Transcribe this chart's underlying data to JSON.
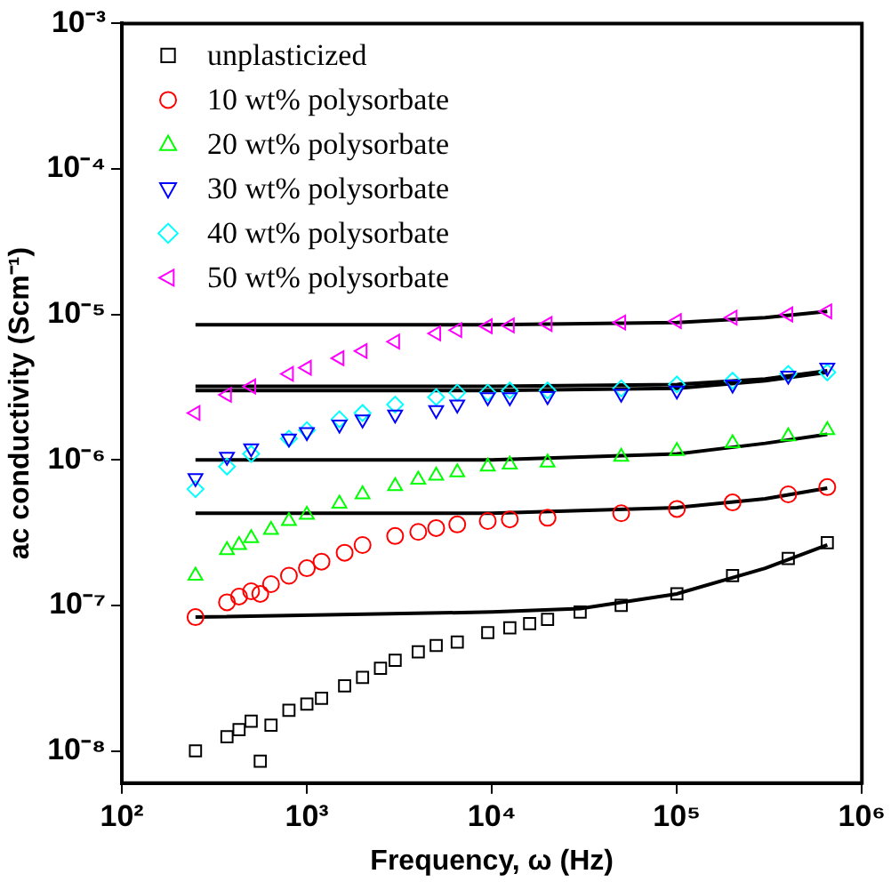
{
  "chart_data": {
    "type": "scatter",
    "xlabel": "Frequency, ω (Hz)",
    "ylabel": "ac conductivity (Scm⁻¹)",
    "log": "xy",
    "xlim": [
      100,
      1000000
    ],
    "xticks": [
      {
        "value": 100,
        "label": "10²"
      },
      {
        "value": 1000,
        "label": "10³"
      },
      {
        "value": 10000,
        "label": "10⁴"
      },
      {
        "value": 100000,
        "label": "10⁵"
      },
      {
        "value": 1000000,
        "label": "10⁶"
      }
    ],
    "ylim": [
      6e-09,
      0.001
    ],
    "yticks": [
      {
        "value": 1e-08,
        "label": "10⁻⁸"
      },
      {
        "value": 1e-07,
        "label": "10⁻⁷"
      },
      {
        "value": 1e-06,
        "label": "10⁻⁶"
      },
      {
        "value": 1e-05,
        "label": "10⁻⁵"
      },
      {
        "value": 0.0001,
        "label": "10⁻⁴"
      },
      {
        "value": 0.001,
        "label": "10⁻³"
      }
    ],
    "grid": false,
    "legend": "top left",
    "series": [
      {
        "name": "unplasticized",
        "type": "scatter",
        "marker": "square",
        "color": "#000000",
        "x": [
          250,
          370,
          430,
          500,
          560,
          640,
          800,
          1000,
          1200,
          1600,
          2000,
          2500,
          3000,
          4000,
          5000,
          6500,
          9500,
          12500,
          16000,
          20000,
          30000,
          50000,
          100000,
          200000,
          400000,
          650000
        ],
        "values": [
          1e-08,
          1.25e-08,
          1.4e-08,
          1.6e-08,
          8.5e-09,
          1.5e-08,
          1.9e-08,
          2.1e-08,
          2.3e-08,
          2.8e-08,
          3.2e-08,
          3.7e-08,
          4.2e-08,
          4.8e-08,
          5.3e-08,
          5.6e-08,
          6.5e-08,
          7e-08,
          7.5e-08,
          8e-08,
          9e-08,
          1e-07,
          1.2e-07,
          1.6e-07,
          2.1e-07,
          2.7e-07
        ]
      },
      {
        "name": "10 wt% polysorbate",
        "type": "scatter",
        "marker": "circle",
        "color": "#ff0000",
        "x": [
          250,
          370,
          430,
          500,
          560,
          640,
          800,
          1000,
          1200,
          1600,
          2000,
          3000,
          4000,
          5000,
          6500,
          9500,
          12500,
          20000,
          50000,
          100000,
          200000,
          400000,
          650000
        ],
        "values": [
          8.3e-08,
          1.05e-07,
          1.15e-07,
          1.25e-07,
          1.2e-07,
          1.4e-07,
          1.6e-07,
          1.8e-07,
          2e-07,
          2.3e-07,
          2.6e-07,
          3e-07,
          3.2e-07,
          3.4e-07,
          3.6e-07,
          3.8e-07,
          3.9e-07,
          4e-07,
          4.3e-07,
          4.6e-07,
          5.1e-07,
          5.8e-07,
          6.5e-07
        ]
      },
      {
        "name": "20 wt% polysorbate",
        "type": "scatter",
        "marker": "triangle",
        "color": "#00ff00",
        "x": [
          250,
          370,
          430,
          500,
          640,
          800,
          1000,
          1500,
          2000,
          3000,
          4000,
          5000,
          6500,
          9500,
          12500,
          20000,
          50000,
          100000,
          200000,
          400000,
          650000
        ],
        "values": [
          1.6e-07,
          2.4e-07,
          2.6e-07,
          2.9e-07,
          3.3e-07,
          3.8e-07,
          4.2e-07,
          5e-07,
          5.8e-07,
          6.6e-07,
          7.3e-07,
          7.8e-07,
          8.2e-07,
          9e-07,
          9.3e-07,
          9.6e-07,
          1.05e-06,
          1.15e-06,
          1.3e-06,
          1.45e-06,
          1.6e-06
        ]
      },
      {
        "name": "30 wt% polysorbate",
        "type": "scatter",
        "marker": "triangle-down",
        "color": "#0000ff",
        "x": [
          250,
          370,
          500,
          800,
          1000,
          1500,
          2000,
          3000,
          5000,
          6500,
          9500,
          12500,
          20000,
          50000,
          100000,
          200000,
          400000,
          650000
        ],
        "values": [
          7.5e-07,
          1.05e-06,
          1.2e-06,
          1.4e-06,
          1.55e-06,
          1.75e-06,
          1.9e-06,
          2.05e-06,
          2.2e-06,
          2.4e-06,
          2.7e-06,
          2.7e-06,
          2.75e-06,
          2.85e-06,
          3e-06,
          3.3e-06,
          3.8e-06,
          4.3e-06
        ]
      },
      {
        "name": "40 wt% polysorbate",
        "type": "scatter",
        "marker": "diamond",
        "color": "#00ffff",
        "x": [
          250,
          370,
          500,
          800,
          1000,
          1500,
          2000,
          3000,
          5000,
          6500,
          9500,
          12500,
          20000,
          50000,
          100000,
          200000,
          400000,
          650000
        ],
        "values": [
          6.3e-07,
          9e-07,
          1.1e-06,
          1.4e-06,
          1.6e-06,
          1.9e-06,
          2.1e-06,
          2.4e-06,
          2.7e-06,
          2.9e-06,
          2.9e-06,
          3e-06,
          3e-06,
          3.1e-06,
          3.3e-06,
          3.5e-06,
          3.9e-06,
          4e-06
        ]
      },
      {
        "name": "50 wt% polysorbate",
        "type": "scatter",
        "marker": "triangle-left",
        "color": "#ff00ff",
        "x": [
          250,
          370,
          500,
          800,
          1000,
          1500,
          2000,
          3000,
          5000,
          6500,
          9500,
          12500,
          20000,
          50000,
          100000,
          200000,
          400000,
          650000
        ],
        "values": [
          2.1e-06,
          2.8e-06,
          3.2e-06,
          3.9e-06,
          4.3e-06,
          5e-06,
          5.6e-06,
          6.5e-06,
          7.4e-06,
          7.8e-06,
          8.3e-06,
          8.4e-06,
          8.6e-06,
          8.8e-06,
          9e-06,
          9.5e-06,
          1e-05,
          1.05e-05
        ]
      },
      {
        "type": "line",
        "marker": "none",
        "color": "#000000",
        "x": [
          250,
          10000,
          30000,
          100000,
          300000,
          650000
        ],
        "values": [
          8.3e-08,
          9e-08,
          9.5e-08,
          1.2e-07,
          1.8e-07,
          2.6e-07
        ]
      },
      {
        "type": "line",
        "marker": "none",
        "color": "#000000",
        "x": [
          250,
          10000,
          100000,
          300000,
          650000
        ],
        "values": [
          4.3e-07,
          4.3e-07,
          4.7e-07,
          5.4e-07,
          6.4e-07
        ]
      },
      {
        "type": "line",
        "marker": "none",
        "color": "#000000",
        "x": [
          250,
          10000,
          100000,
          300000,
          650000
        ],
        "values": [
          1e-06,
          1e-06,
          1.1e-06,
          1.3e-06,
          1.5e-06
        ]
      },
      {
        "type": "line",
        "marker": "none",
        "color": "#000000",
        "x": [
          250,
          10000,
          100000,
          300000,
          650000
        ],
        "values": [
          3e-06,
          3e-06,
          3.1e-06,
          3.5e-06,
          4e-06
        ]
      },
      {
        "type": "line",
        "marker": "none",
        "color": "#000000",
        "x": [
          250,
          10000,
          100000,
          300000,
          650000
        ],
        "values": [
          3.2e-06,
          3.2e-06,
          3.3e-06,
          3.6e-06,
          4.1e-06
        ]
      },
      {
        "type": "line",
        "marker": "none",
        "color": "#000000",
        "x": [
          250,
          10000,
          100000,
          300000,
          650000
        ],
        "values": [
          8.5e-06,
          8.5e-06,
          8.8e-06,
          9.5e-06,
          1.05e-05
        ]
      }
    ]
  }
}
